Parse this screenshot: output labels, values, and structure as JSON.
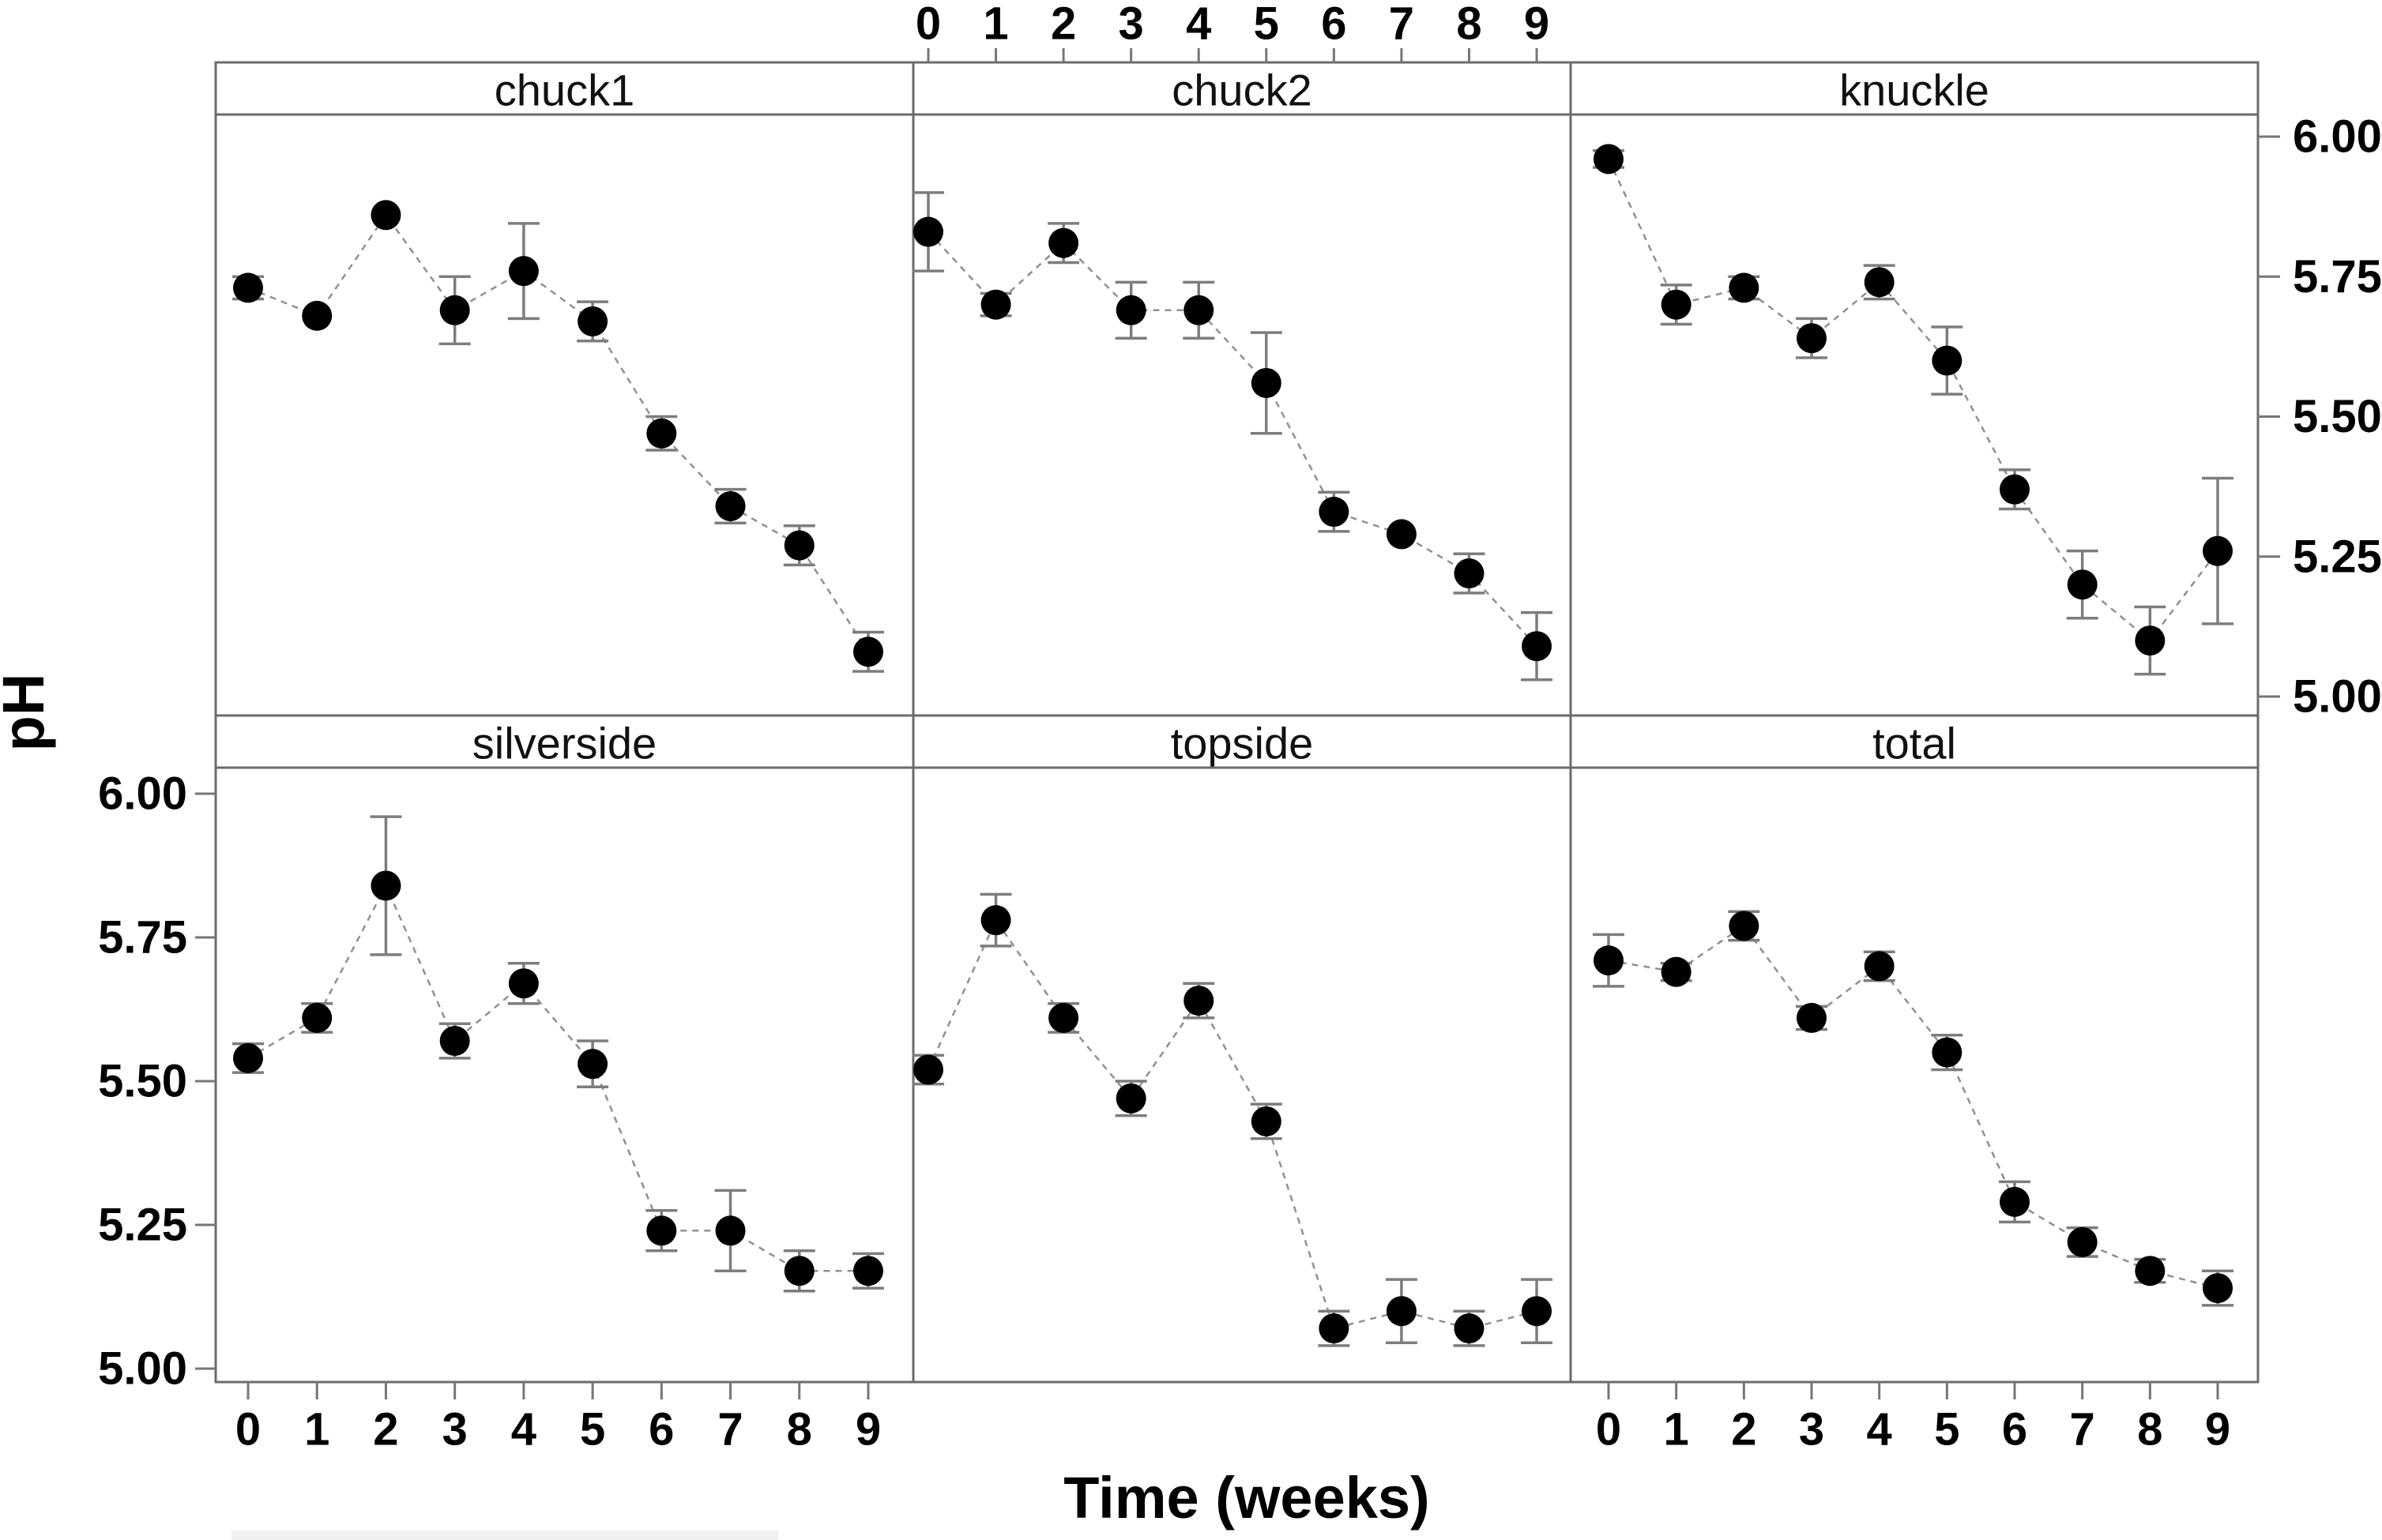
{
  "figure": {
    "ylabel": "pH",
    "xlabel": "Time (weeks)"
  },
  "chart_data": {
    "type": "line",
    "layout": "lattice 2 rows x 3 columns, shared axes, points with error bars connected by dashed lines",
    "x": [
      0,
      1,
      2,
      3,
      4,
      5,
      6,
      7,
      8,
      9
    ],
    "x_tick_labels": [
      "0",
      "1",
      "2",
      "3",
      "4",
      "5",
      "6",
      "7",
      "8",
      "9"
    ],
    "y_tick_labels": [
      "6.00",
      "5.75",
      "5.50",
      "5.25",
      "5.00"
    ],
    "y_tick_values": [
      6.0,
      5.75,
      5.5,
      5.25,
      5.0
    ],
    "ylim": [
      4.97,
      6.04
    ],
    "xlabel": "Time (weeks)",
    "ylabel": "pH",
    "error_bars": true,
    "axis_sides": {
      "top_labels_column": 1,
      "right_labels_row": 0,
      "left_labels_row": 1,
      "bottom_labels_columns": [
        0,
        2
      ]
    },
    "panels": [
      {
        "title": "chuck1",
        "row": 0,
        "col": 0,
        "values": [
          5.73,
          5.68,
          5.86,
          5.69,
          5.76,
          5.67,
          5.47,
          5.34,
          5.27,
          5.08
        ],
        "errors": [
          0.02,
          0.01,
          0.01,
          0.06,
          0.085,
          0.035,
          0.03,
          0.03,
          0.035,
          0.035
        ]
      },
      {
        "title": "chuck2",
        "row": 0,
        "col": 1,
        "values": [
          5.83,
          5.7,
          5.81,
          5.69,
          5.69,
          5.56,
          5.33,
          5.29,
          5.22,
          5.09
        ],
        "errors": [
          0.07,
          0.02,
          0.035,
          0.05,
          0.05,
          0.09,
          0.035,
          0.01,
          0.035,
          0.06
        ]
      },
      {
        "title": "knuckle",
        "row": 0,
        "col": 2,
        "values": [
          5.96,
          5.7,
          5.73,
          5.64,
          5.74,
          5.6,
          5.37,
          5.2,
          5.1,
          5.26
        ],
        "errors": [
          0.015,
          0.035,
          0.02,
          0.035,
          0.03,
          0.06,
          0.035,
          0.06,
          0.06,
          0.13
        ]
      },
      {
        "title": "silverside",
        "row": 1,
        "col": 0,
        "values": [
          5.54,
          5.61,
          5.84,
          5.57,
          5.67,
          5.53,
          5.24,
          5.24,
          5.17,
          5.17
        ],
        "errors": [
          0.025,
          0.025,
          0.12,
          0.03,
          0.035,
          0.04,
          0.035,
          0.07,
          0.035,
          0.03
        ]
      },
      {
        "title": "topside",
        "row": 1,
        "col": 1,
        "values": [
          5.52,
          5.78,
          5.61,
          5.47,
          5.64,
          5.43,
          5.07,
          5.1,
          5.07,
          5.1
        ],
        "errors": [
          0.025,
          0.045,
          0.025,
          0.03,
          0.03,
          0.03,
          0.03,
          0.055,
          0.03,
          0.055
        ]
      },
      {
        "title": "total",
        "row": 1,
        "col": 2,
        "values": [
          5.71,
          5.69,
          5.77,
          5.61,
          5.7,
          5.55,
          5.29,
          5.22,
          5.17,
          5.14
        ],
        "errors": [
          0.045,
          0.015,
          0.025,
          0.02,
          0.025,
          0.03,
          0.035,
          0.025,
          0.02,
          0.03
        ]
      }
    ]
  },
  "colors": {
    "background": "#ffffff",
    "panel_border": "#6b6b6b",
    "tick": "#767676",
    "text": "#000000",
    "error_bar": "#7d7d7d",
    "series_line": "#909090",
    "point": "#000000",
    "bottom_band": "#eff0f1"
  }
}
